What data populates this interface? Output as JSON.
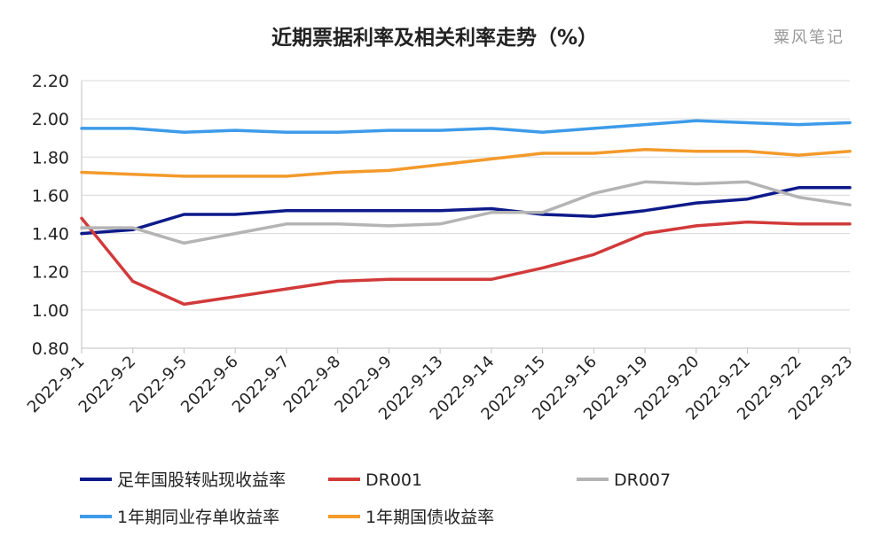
{
  "chart_data": {
    "type": "line",
    "title": "近期票据利率及相关利率走势（%）",
    "watermark": "粟风笔记",
    "xlabel": "",
    "ylabel": "",
    "ylim": [
      0.8,
      2.2
    ],
    "yticks": [
      "0.80",
      "1.00",
      "1.20",
      "1.40",
      "1.60",
      "1.80",
      "2.00",
      "2.20"
    ],
    "ytick_values": [
      0.8,
      1.0,
      1.2,
      1.4,
      1.6,
      1.8,
      2.0,
      2.2
    ],
    "grid": true,
    "legend_position": "bottom",
    "categories": [
      "2022-9-1",
      "2022-9-2",
      "2022-9-5",
      "2022-9-6",
      "2022-9-7",
      "2022-9-8",
      "2022-9-9",
      "2022-9-13",
      "2022-9-14",
      "2022-9-15",
      "2022-9-16",
      "2022-9-19",
      "2022-9-20",
      "2022-9-21",
      "2022-9-22",
      "2022-9-23"
    ],
    "series": [
      {
        "name": "足年国股转贴现收益率",
        "color": "#0d1a8a",
        "values": [
          1.4,
          1.42,
          1.5,
          1.5,
          1.52,
          1.52,
          1.52,
          1.52,
          1.53,
          1.5,
          1.49,
          1.52,
          1.56,
          1.58,
          1.64,
          1.64
        ]
      },
      {
        "name": "DR001",
        "color": "#d23a3a",
        "values": [
          1.48,
          1.15,
          1.03,
          1.07,
          1.11,
          1.15,
          1.16,
          1.16,
          1.16,
          1.22,
          1.29,
          1.4,
          1.44,
          1.46,
          1.45,
          1.45
        ]
      },
      {
        "name": "DR007",
        "color": "#b4b4b4",
        "values": [
          1.43,
          1.43,
          1.35,
          1.4,
          1.45,
          1.45,
          1.44,
          1.45,
          1.51,
          1.51,
          1.61,
          1.67,
          1.66,
          1.67,
          1.59,
          1.55
        ]
      },
      {
        "name": "1年期同业存单收益率",
        "color": "#3d9be9",
        "values": [
          1.95,
          1.95,
          1.93,
          1.94,
          1.93,
          1.93,
          1.94,
          1.94,
          1.95,
          1.93,
          1.95,
          1.97,
          1.99,
          1.98,
          1.97,
          1.98
        ]
      },
      {
        "name": "1年期国债收益率",
        "color": "#f39a2b",
        "values": [
          1.72,
          1.71,
          1.7,
          1.7,
          1.7,
          1.72,
          1.73,
          1.76,
          1.79,
          1.82,
          1.82,
          1.84,
          1.83,
          1.83,
          1.81,
          1.83
        ]
      }
    ]
  }
}
